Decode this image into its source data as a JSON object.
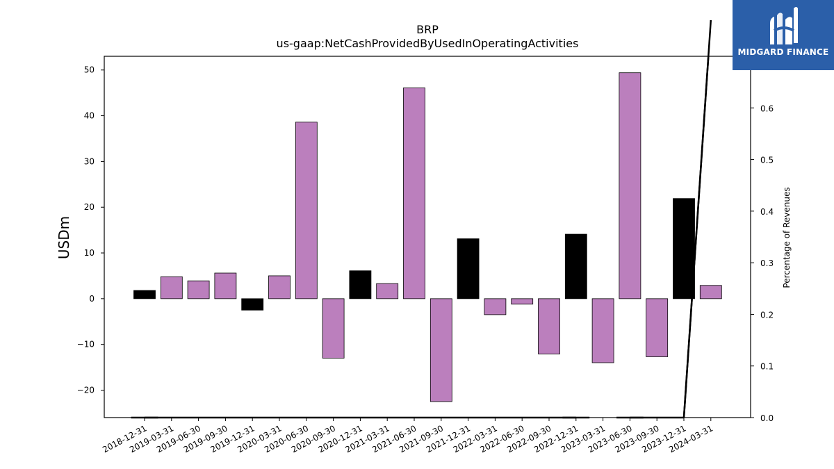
{
  "chart_data": {
    "type": "bar",
    "title": "BRP",
    "subtitle": "us-gaap:NetCashProvidedByUsedInOperatingActivities",
    "ylabel": "USDm",
    "y2label": "Percentage of Revenues",
    "ylim": [
      -26,
      53
    ],
    "y2lim": [
      0.0,
      0.7
    ],
    "yticks": [
      -20,
      -10,
      0,
      10,
      20,
      30,
      40,
      50
    ],
    "y2ticks": [
      0.0,
      0.1,
      0.2,
      0.3,
      0.4,
      0.5,
      0.6,
      0.7
    ],
    "categories": [
      "2018-12-31",
      "2019-03-31",
      "2019-06-30",
      "2019-09-30",
      "2019-12-31",
      "2020-03-31",
      "2020-06-30",
      "2020-09-30",
      "2020-12-31",
      "2021-03-31",
      "2021-06-30",
      "2021-09-30",
      "2021-12-31",
      "2022-03-31",
      "2022-06-30",
      "2022-09-30",
      "2022-12-31",
      "2023-03-31",
      "2023-06-30",
      "2023-09-30",
      "2023-12-31",
      "2024-03-31"
    ],
    "values": [
      1.8,
      4.8,
      3.9,
      5.6,
      -2.5,
      5.0,
      38.6,
      -13.0,
      6.1,
      3.3,
      46.1,
      -22.5,
      13.1,
      -3.5,
      -1.2,
      -12.1,
      14.1,
      -14.0,
      49.4,
      -12.7,
      21.9,
      2.9
    ],
    "bar_colors": [
      "#000000",
      "#bb7fbd",
      "#bb7fbd",
      "#bb7fbd",
      "#000000",
      "#bb7fbd",
      "#bb7fbd",
      "#bb7fbd",
      "#000000",
      "#bb7fbd",
      "#bb7fbd",
      "#bb7fbd",
      "#000000",
      "#bb7fbd",
      "#bb7fbd",
      "#bb7fbd",
      "#000000",
      "#bb7fbd",
      "#bb7fbd",
      "#bb7fbd",
      "#000000",
      "#bb7fbd"
    ],
    "ratio_line": [
      0.0,
      null,
      null,
      null,
      null,
      null,
      null,
      null,
      null,
      null,
      null,
      null,
      null,
      null,
      null,
      null,
      0.0,
      null,
      0.0,
      null,
      0.0,
      0.77
    ],
    "ratio_color": "#000000",
    "grid": false,
    "legend": "none"
  },
  "logo": {
    "text": "MIDGARD FINANCE",
    "color": "#2b5fa9"
  }
}
